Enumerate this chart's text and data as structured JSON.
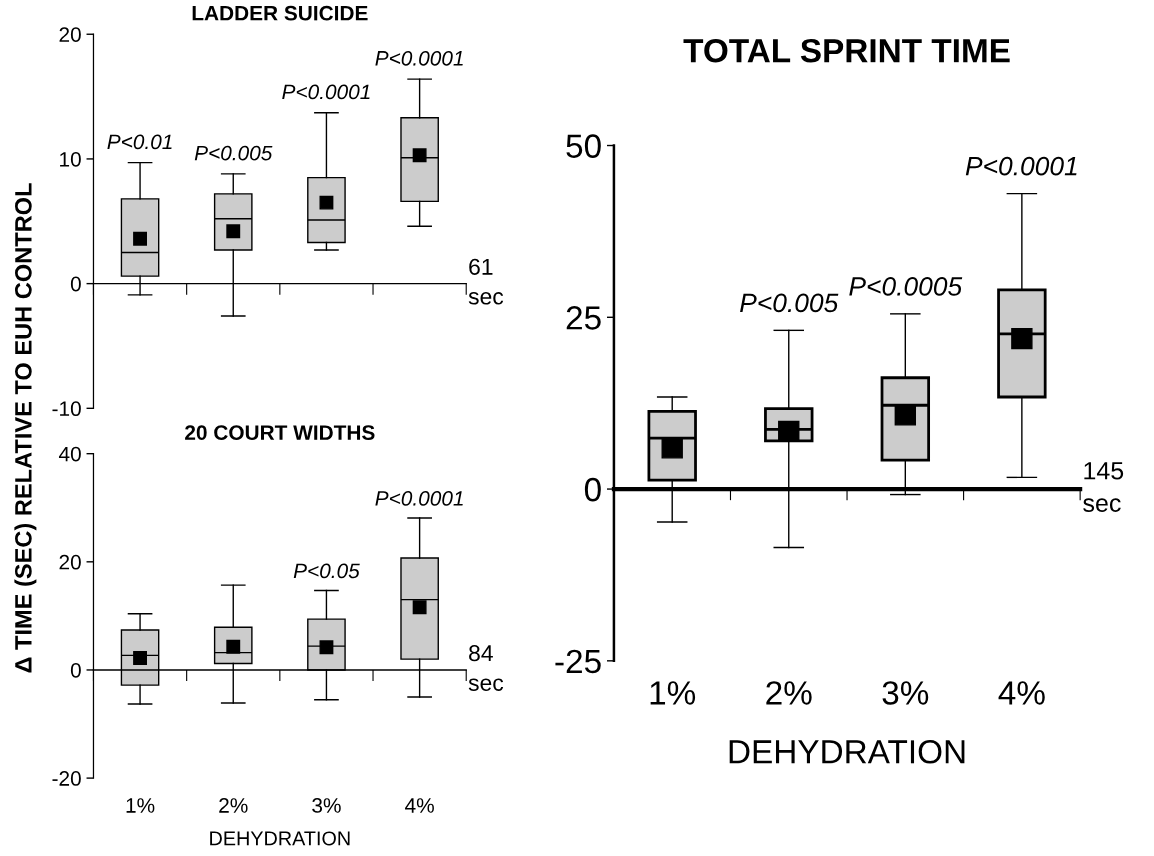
{
  "chart_data": [
    {
      "type": "box",
      "title": "LADDER SUICIDE",
      "ylabel": "Δ TIME (SEC) RELATIVE TO EUH CONTROL",
      "categories": [
        "1%",
        "2%",
        "3%",
        "4%"
      ],
      "tick_labels": "y",
      "ylim": [
        -10,
        20
      ],
      "yticks": [
        -10,
        0,
        10,
        20
      ],
      "marker": "square",
      "series": [
        {
          "color": "#cccccc",
          "boxes": [
            {
              "low": -0.9,
              "q1": 0.6,
              "median": 2.5,
              "q3": 6.8,
              "high": 9.7,
              "mean": 3.6
            },
            {
              "low": -2.6,
              "q1": 2.7,
              "median": 5.2,
              "q3": 7.2,
              "high": 8.8,
              "mean": 4.2
            },
            {
              "low": 2.7,
              "q1": 3.3,
              "median": 5.1,
              "q3": 8.5,
              "high": 13.7,
              "mean": 6.5
            },
            {
              "low": 4.6,
              "q1": 6.6,
              "median": 10.1,
              "q3": 13.3,
              "high": 16.4,
              "mean": 10.3
            }
          ]
        }
      ],
      "annotations": [
        {
          "text": "P<0.01",
          "x": "1%",
          "y": 9.7
        },
        {
          "text": "P<0.005",
          "x": "2%",
          "y": 8.8
        },
        {
          "text": "P<0.0001",
          "x": "3%",
          "y": 13.7
        },
        {
          "text": "P<0.0001",
          "x": "4%",
          "y": 16.4
        },
        "61\nsec"
      ]
    },
    {
      "type": "box",
      "title": "20 COURT WIDTHS",
      "xlabel": "DEHYDRATION",
      "categories": [
        "1%",
        "2%",
        "3%",
        "4%"
      ],
      "ylim": [
        -20,
        40
      ],
      "yticks": [
        -20,
        0,
        20,
        40
      ],
      "marker": "square",
      "series": [
        {
          "color": "#cccccc",
          "boxes": [
            {
              "low": -6.3,
              "q1": -2.8,
              "median": 2.7,
              "q3": 7.4,
              "high": 10.4,
              "mean": 2.2
            },
            {
              "low": -6.1,
              "q1": 1.2,
              "median": 3.2,
              "q3": 7.9,
              "high": 15.7,
              "mean": 4.3
            },
            {
              "low": -5.5,
              "q1": 0,
              "median": 4.4,
              "q3": 9.4,
              "high": 14.7,
              "mean": 4.2
            },
            {
              "low": -5.0,
              "q1": 2.0,
              "median": 13.0,
              "q3": 20.7,
              "high": 28.1,
              "mean": 11.6
            }
          ]
        }
      ],
      "annotations": [
        {
          "text": "P<0.05",
          "x": "3%",
          "y": 14.7
        },
        {
          "text": "P<0.0001",
          "x": "4%",
          "y": 28.1
        },
        "84\nsec"
      ]
    },
    {
      "type": "box",
      "title": "TOTAL SPRINT TIME",
      "xlabel": "DEHYDRATION",
      "categories": [
        "1%",
        "2%",
        "3%",
        "4%"
      ],
      "ylim": [
        -25,
        50
      ],
      "yticks": [
        -25,
        0,
        25,
        50
      ],
      "marker": "square",
      "series": [
        {
          "color": "#cccccc",
          "boxes": [
            {
              "low": -4.8,
              "q1": 1.3,
              "median": 7.4,
              "q3": 11.3,
              "high": 13.4,
              "mean": 6.0
            },
            {
              "low": -8.5,
              "q1": 7.0,
              "median": 8.7,
              "q3": 11.7,
              "high": 23.1,
              "mean": 8.4
            },
            {
              "low": -0.8,
              "q1": 4.2,
              "median": 12.2,
              "q3": 16.2,
              "high": 25.5,
              "mean": 10.8
            },
            {
              "low": 1.7,
              "q1": 13.4,
              "median": 22.6,
              "q3": 29.0,
              "high": 43.0,
              "mean": 21.9
            }
          ]
        }
      ],
      "annotations": [
        {
          "text": "P<0.005",
          "x": "2%",
          "y": 23.1
        },
        {
          "text": "P<0.0005",
          "x": "3%",
          "y": 25.5
        },
        {
          "text": "P<0.0001",
          "x": "4%",
          "y": 43.0
        },
        "145\nsec"
      ]
    }
  ]
}
